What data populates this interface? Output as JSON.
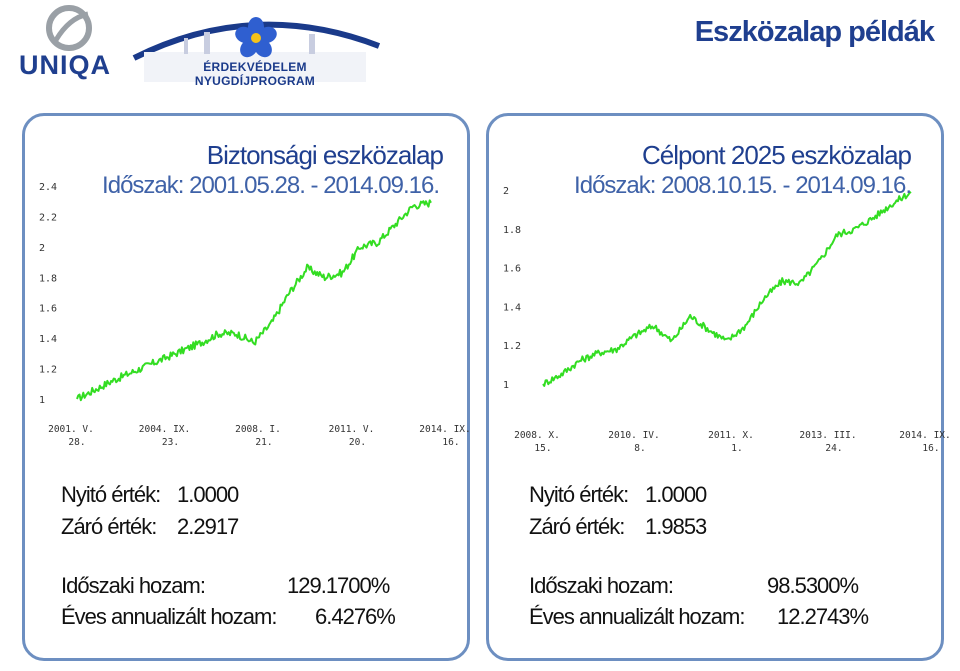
{
  "page_title": "Eszközalap példák",
  "logos": {
    "uniqa": "UNIQA",
    "program": "ÉRDEKVÉDELEM NYUGDÍJPROGRAM"
  },
  "colors": {
    "title_blue": "#1f3f8f",
    "panel_border": "#6d8fc1",
    "line_green": "#33dd22"
  },
  "panels": [
    {
      "title": "Biztonsági eszközalap",
      "period": "Időszak: 2001.05.28. - 2014.09.16.",
      "open_label": "Nyitó érték:",
      "open_value": "1.0000",
      "close_label": "Záró érték:",
      "close_value": "2.2917",
      "return_label": "Időszaki hozam:",
      "return_value": "129.1700%",
      "annual_label": "Éves annualizált hozam:",
      "annual_value": "6.4276%"
    },
    {
      "title": "Célpont 2025 eszközalap",
      "period": "Időszak: 2008.10.15. - 2014.09.16.",
      "open_label": "Nyitó érték:",
      "open_value": "1.0000",
      "close_label": "Záró érték:",
      "close_value": "1.9853",
      "return_label": "Időszaki hozam:",
      "return_value": "98.5300%",
      "annual_label": "Éves annualizált hozam:",
      "annual_value": "12.2743%"
    }
  ],
  "chart_data": [
    {
      "type": "line",
      "title": "Biztonsági eszközalap",
      "ylim": [
        1.0,
        2.4
      ],
      "yticks": [
        "2.4",
        "2.2",
        "2",
        "1.8",
        "1.6",
        "1.4",
        "1.2",
        "1"
      ],
      "xticks": [
        [
          "2001. V.",
          "28."
        ],
        [
          "2004. IX.",
          "23."
        ],
        [
          "2008. I.",
          "21."
        ],
        [
          "2011. V.",
          "20."
        ],
        [
          "2014. IX.",
          "16."
        ]
      ],
      "series": [
        {
          "x": [
            0,
            0.05,
            0.1,
            0.15,
            0.2,
            0.25,
            0.3,
            0.35,
            0.4,
            0.45,
            0.5,
            0.55,
            0.6,
            0.65,
            0.7,
            0.75,
            0.8,
            0.85,
            0.9,
            0.95,
            1.0
          ],
          "values": [
            1.0,
            1.06,
            1.12,
            1.17,
            1.22,
            1.27,
            1.32,
            1.37,
            1.43,
            1.43,
            1.37,
            1.5,
            1.7,
            1.86,
            1.8,
            1.83,
            2.0,
            2.03,
            2.15,
            2.27,
            2.29
          ]
        }
      ]
    },
    {
      "type": "line",
      "title": "Célpont 2025 eszközalap",
      "ylim": [
        1.0,
        2.0
      ],
      "yticks": [
        "2",
        "1.8",
        "1.6",
        "1.4",
        "1.2",
        "1"
      ],
      "xticks": [
        [
          "2008. X.",
          "15."
        ],
        [
          "2010. IV.",
          "8."
        ],
        [
          "2011. X.",
          "1."
        ],
        [
          "2013. III.",
          "24."
        ],
        [
          "2014. IX.",
          "16."
        ]
      ],
      "series": [
        {
          "x": [
            0,
            0.05,
            0.1,
            0.15,
            0.2,
            0.25,
            0.3,
            0.35,
            0.4,
            0.45,
            0.5,
            0.55,
            0.6,
            0.65,
            0.7,
            0.75,
            0.8,
            0.85,
            0.9,
            0.95,
            1.0
          ],
          "values": [
            1.0,
            1.05,
            1.12,
            1.16,
            1.18,
            1.25,
            1.3,
            1.22,
            1.35,
            1.28,
            1.22,
            1.3,
            1.44,
            1.53,
            1.52,
            1.63,
            1.77,
            1.8,
            1.86,
            1.93,
            1.99
          ]
        }
      ]
    }
  ]
}
